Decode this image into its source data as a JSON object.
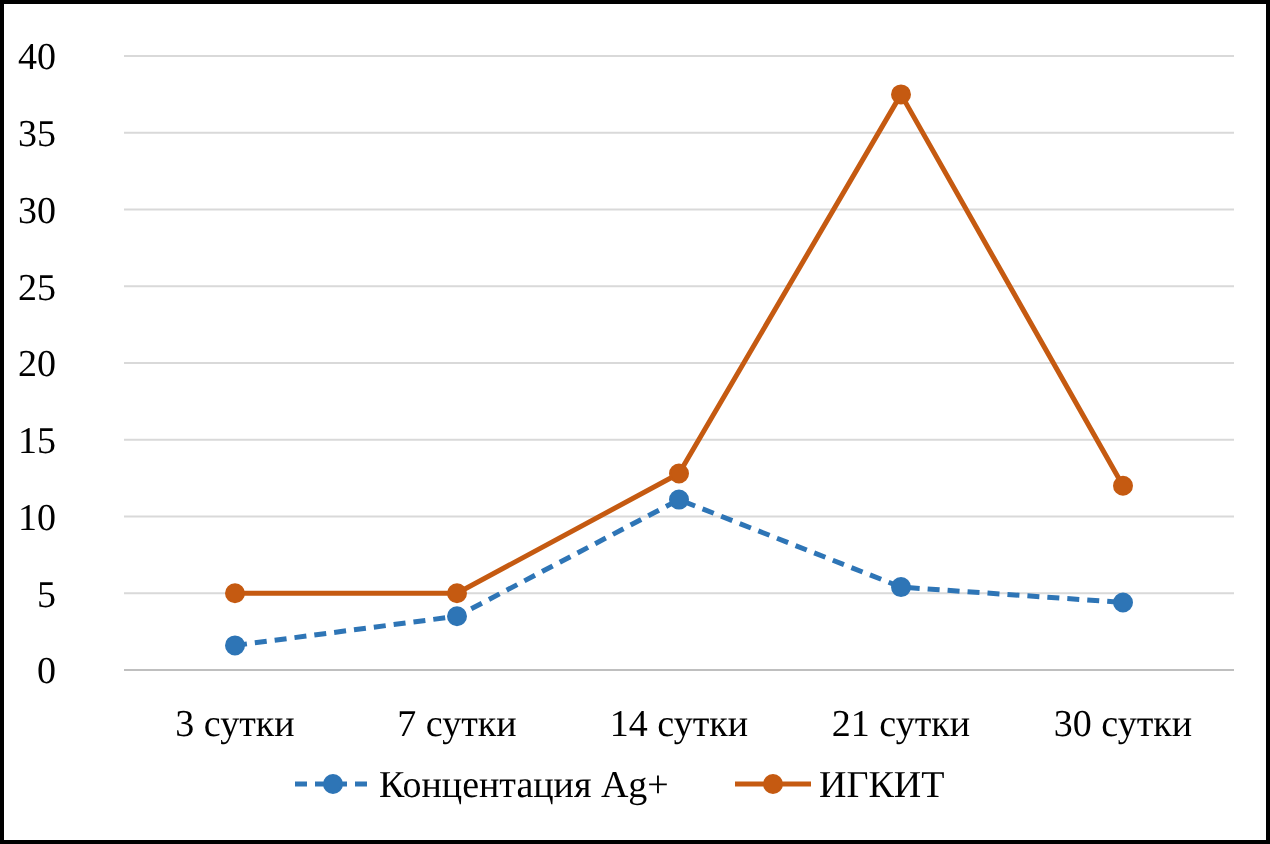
{
  "chart_data": {
    "type": "line",
    "categories": [
      "3 сутки",
      "7 сутки",
      "14 сутки",
      "21 сутки",
      "30 сутки"
    ],
    "series": [
      {
        "name": "Концентация Ag+",
        "color": "#2e75b6",
        "values": [
          1.6,
          3.5,
          11.1,
          5.4,
          4.4
        ],
        "line_style": "dashed"
      },
      {
        "name": "ИГКИТ",
        "color": "#c55a11",
        "values": [
          5,
          5,
          12.8,
          37.5,
          12
        ],
        "line_style": "solid"
      }
    ],
    "ylim": [
      0,
      40
    ],
    "yticks": [
      0,
      5,
      10,
      15,
      20,
      25,
      30,
      35,
      40
    ],
    "grid": "y",
    "legend": "bottom",
    "marker": "circle"
  }
}
